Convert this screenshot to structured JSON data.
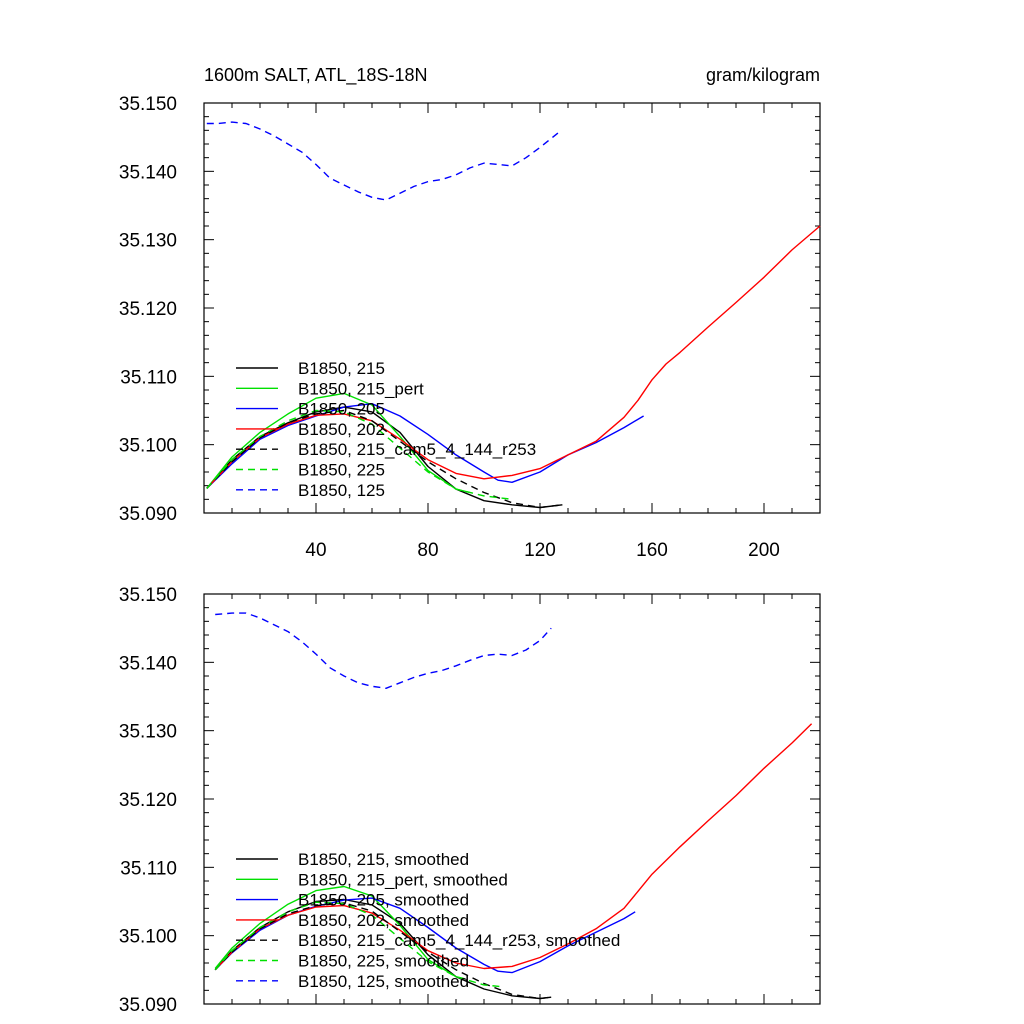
{
  "chart_data": [
    {
      "type": "line",
      "title": "1600m SALT, ATL_18S-18N",
      "units": "gram/kilogram",
      "xlim": [
        0,
        220
      ],
      "ylim": [
        35.09,
        35.15
      ],
      "x_ticks": [
        "40",
        "80",
        "120",
        "160",
        "200"
      ],
      "y_ticks": [
        "35.150",
        "35.140",
        "35.130",
        "35.120",
        "35.110",
        "35.100",
        "35.090"
      ],
      "legend": [
        {
          "label": "B1850, 215",
          "color": "#000000",
          "dash": "solid"
        },
        {
          "label": "B1850, 215_pert",
          "color": "#00e000",
          "dash": "solid"
        },
        {
          "label": "B1850, 205",
          "color": "#0000ff",
          "dash": "solid"
        },
        {
          "label": "B1850, 202",
          "color": "#ff0000",
          "dash": "solid"
        },
        {
          "label": "B1850, 215_cam5_4_144_r253",
          "color": "#000000",
          "dash": "dashed"
        },
        {
          "label": "B1850, 225",
          "color": "#00e000",
          "dash": "dashed"
        },
        {
          "label": "B1850, 125",
          "color": "#0000ff",
          "dash": "dashed"
        }
      ],
      "series": [
        {
          "name": "B1850, 215",
          "x": [
            1,
            10,
            20,
            30,
            40,
            50,
            60,
            70,
            80,
            90,
            100,
            110,
            120,
            128
          ],
          "y": [
            35.0936,
            35.0978,
            35.1012,
            35.1032,
            35.1048,
            35.1055,
            35.1048,
            35.1018,
            35.0968,
            35.0935,
            35.0918,
            35.0912,
            35.0908,
            35.0912
          ]
        },
        {
          "name": "B1850, 215_pert",
          "x": [
            1,
            10,
            20,
            30,
            40,
            50,
            60,
            70,
            80,
            90,
            95
          ],
          "y": [
            35.0936,
            35.0982,
            35.1018,
            35.1045,
            35.1068,
            35.1075,
            35.1058,
            35.1012,
            35.0962,
            35.0935,
            35.093
          ]
        },
        {
          "name": "B1850, 205",
          "x": [
            1,
            10,
            20,
            30,
            40,
            50,
            60,
            70,
            80,
            90,
            100,
            105,
            110,
            120,
            130,
            140,
            150,
            157
          ],
          "y": [
            35.0936,
            35.0972,
            35.1008,
            35.1028,
            35.1042,
            35.1055,
            35.106,
            35.1042,
            35.1015,
            35.0985,
            35.096,
            35.0948,
            35.0945,
            35.096,
            35.0985,
            35.1003,
            35.1025,
            35.1042
          ]
        },
        {
          "name": "B1850, 202",
          "x": [
            1,
            10,
            20,
            30,
            40,
            50,
            60,
            70,
            80,
            90,
            100,
            110,
            120,
            130,
            140,
            150,
            155,
            160,
            165,
            170,
            180,
            190,
            200,
            210,
            220
          ],
          "y": [
            35.0936,
            35.0975,
            35.101,
            35.103,
            35.1043,
            35.1045,
            35.1035,
            35.1008,
            35.0978,
            35.0958,
            35.095,
            35.0955,
            35.0965,
            35.0985,
            35.1005,
            35.104,
            35.1065,
            35.1095,
            35.1118,
            35.1135,
            35.1172,
            35.1208,
            35.1245,
            35.1285,
            35.132
          ]
        },
        {
          "name": "B1850, 215_cam5_4_144_r253",
          "x": [
            1,
            10,
            20,
            30,
            40,
            50,
            60,
            70,
            80,
            90,
            100,
            110,
            120,
            128
          ],
          "y": [
            35.0936,
            35.0975,
            35.101,
            35.1032,
            35.1045,
            35.105,
            35.1035,
            35.1005,
            35.0975,
            35.095,
            35.093,
            35.0915,
            35.0908,
            35.0912
          ]
        },
        {
          "name": "B1850, 225",
          "x": [
            1,
            10,
            20,
            30,
            40,
            50,
            60,
            70,
            80,
            90,
            100,
            110
          ],
          "y": [
            35.0936,
            35.0978,
            35.1012,
            35.1035,
            35.105,
            35.1048,
            35.103,
            35.0995,
            35.096,
            35.0935,
            35.0925,
            35.092
          ]
        },
        {
          "name": "B1850, 125",
          "x": [
            1,
            5,
            10,
            15,
            20,
            25,
            30,
            35,
            40,
            45,
            50,
            55,
            60,
            65,
            70,
            75,
            80,
            85,
            90,
            95,
            100,
            105,
            110,
            115,
            120,
            127
          ],
          "y": [
            35.147,
            35.147,
            35.1472,
            35.147,
            35.1462,
            35.1452,
            35.144,
            35.1428,
            35.141,
            35.139,
            35.138,
            35.137,
            35.1362,
            35.1358,
            35.1368,
            35.1378,
            35.1385,
            35.1388,
            35.1395,
            35.1405,
            35.1412,
            35.141,
            35.1408,
            35.142,
            35.1435,
            35.1458
          ]
        }
      ]
    },
    {
      "type": "line",
      "title": "",
      "units": "",
      "xlim": [
        0,
        220
      ],
      "ylim": [
        35.09,
        35.15
      ],
      "x_ticks": [],
      "y_ticks": [
        "35.150",
        "35.140",
        "35.130",
        "35.120",
        "35.110",
        "35.100",
        "35.090"
      ],
      "legend": [
        {
          "label": "B1850, 215, smoothed",
          "color": "#000000",
          "dash": "solid"
        },
        {
          "label": "B1850, 215_pert, smoothed",
          "color": "#00e000",
          "dash": "solid"
        },
        {
          "label": "B1850, 205, smoothed",
          "color": "#0000ff",
          "dash": "solid"
        },
        {
          "label": "B1850, 202, smoothed",
          "color": "#ff0000",
          "dash": "solid"
        },
        {
          "label": "B1850, 215_cam5_4_144_r253, smoothed",
          "color": "#000000",
          "dash": "dashed"
        },
        {
          "label": "B1850, 225, smoothed",
          "color": "#00e000",
          "dash": "dashed"
        },
        {
          "label": "B1850, 125, smoothed",
          "color": "#0000ff",
          "dash": "dashed"
        }
      ],
      "series": [
        {
          "name": "B1850, 215, smoothed",
          "x": [
            4,
            10,
            20,
            30,
            40,
            50,
            60,
            70,
            80,
            90,
            100,
            110,
            120,
            124
          ],
          "y": [
            35.095,
            35.0978,
            35.1012,
            35.1035,
            35.105,
            35.1053,
            35.1045,
            35.1018,
            35.0972,
            35.094,
            35.0922,
            35.0912,
            35.0908,
            35.091
          ]
        },
        {
          "name": "B1850, 215_pert, smoothed",
          "x": [
            4,
            10,
            20,
            30,
            40,
            50,
            60,
            70,
            80,
            90,
            93
          ],
          "y": [
            35.0952,
            35.0982,
            35.1018,
            35.1046,
            35.1066,
            35.1072,
            35.1058,
            35.1015,
            35.0965,
            35.094,
            35.0937
          ]
        },
        {
          "name": "B1850, 205, smoothed",
          "x": [
            4,
            10,
            20,
            30,
            40,
            50,
            60,
            70,
            80,
            90,
            100,
            105,
            110,
            120,
            130,
            140,
            150,
            154
          ],
          "y": [
            35.095,
            35.0975,
            35.1008,
            35.103,
            35.1043,
            35.1052,
            35.1055,
            35.104,
            35.1012,
            35.0982,
            35.0958,
            35.0948,
            35.0946,
            35.0962,
            35.0985,
            35.1005,
            35.1025,
            35.1035
          ]
        },
        {
          "name": "B1850, 202, smoothed",
          "x": [
            4,
            10,
            20,
            30,
            40,
            50,
            60,
            70,
            80,
            90,
            100,
            110,
            120,
            130,
            140,
            150,
            155,
            160,
            170,
            180,
            190,
            200,
            210,
            217
          ],
          "y": [
            35.095,
            35.0976,
            35.101,
            35.103,
            35.1042,
            35.1044,
            35.1033,
            35.1008,
            35.0978,
            35.096,
            35.0952,
            35.0955,
            35.0968,
            35.0988,
            35.101,
            35.104,
            35.1065,
            35.109,
            35.113,
            35.1168,
            35.1205,
            35.1245,
            35.1282,
            35.131
          ]
        },
        {
          "name": "B1850, 215_cam5_4_144_r253, smoothed",
          "x": [
            4,
            10,
            20,
            30,
            40,
            50,
            60,
            70,
            80,
            90,
            100,
            110,
            120,
            124
          ],
          "y": [
            35.095,
            35.0976,
            35.101,
            35.1032,
            35.1044,
            35.1048,
            35.1036,
            35.1006,
            35.0976,
            35.095,
            35.093,
            35.0914,
            35.0908,
            35.091
          ]
        },
        {
          "name": "B1850, 225, smoothed",
          "x": [
            4,
            10,
            20,
            30,
            40,
            50,
            60,
            70,
            80,
            90,
            100,
            107
          ],
          "y": [
            35.095,
            35.0978,
            35.1012,
            35.1035,
            35.1049,
            35.1047,
            35.103,
            35.0996,
            35.0962,
            35.094,
            35.0928,
            35.0925
          ]
        },
        {
          "name": "B1850, 125, smoothed",
          "x": [
            4,
            10,
            15,
            20,
            25,
            30,
            35,
            40,
            45,
            50,
            55,
            60,
            65,
            70,
            75,
            80,
            85,
            90,
            95,
            100,
            105,
            110,
            115,
            120,
            124
          ],
          "y": [
            35.147,
            35.1472,
            35.1472,
            35.1465,
            35.1455,
            35.1445,
            35.143,
            35.1412,
            35.1392,
            35.138,
            35.137,
            35.1365,
            35.1362,
            35.137,
            35.1378,
            35.1384,
            35.1388,
            35.1395,
            35.1403,
            35.141,
            35.1412,
            35.141,
            35.1418,
            35.1432,
            35.145
          ]
        }
      ]
    }
  ]
}
